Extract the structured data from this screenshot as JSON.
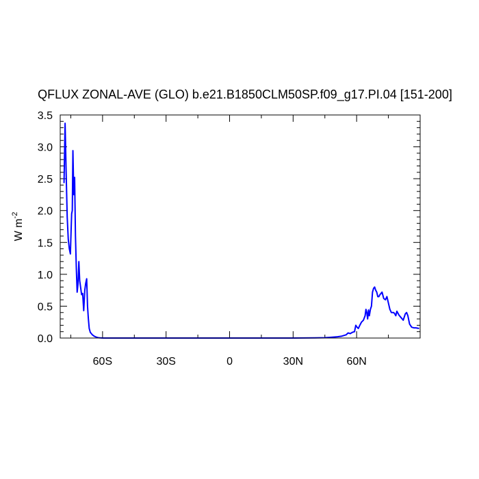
{
  "chart_data": {
    "type": "line",
    "title": "QFLUX ZONAL-AVE (GLO) b.e21.B1850CLM50SP.f09_g17.PI.04 [151-200]",
    "ylabel": "W m",
    "ylabel_superscript": "-2",
    "xlim": [
      -80,
      90
    ],
    "ylim": [
      0,
      3.5
    ],
    "grid": false,
    "legend": "none",
    "x_ticks": [
      {
        "value": -60,
        "label": "60S"
      },
      {
        "value": -30,
        "label": "30S"
      },
      {
        "value": 0,
        "label": "0"
      },
      {
        "value": 30,
        "label": "30N"
      },
      {
        "value": 60,
        "label": "60N"
      }
    ],
    "y_ticks": [
      {
        "value": 0,
        "label": "0.0"
      },
      {
        "value": 0.5,
        "label": "0.5"
      },
      {
        "value": 1.0,
        "label": "1.0"
      },
      {
        "value": 1.5,
        "label": "1.5"
      },
      {
        "value": 2.0,
        "label": "2.0"
      },
      {
        "value": 2.5,
        "label": "2.5"
      },
      {
        "value": 3.0,
        "label": "3.0"
      },
      {
        "value": 3.5,
        "label": "3.5"
      }
    ],
    "series": [
      {
        "color": "#0000ff",
        "x": [
          -78.2,
          -77.7,
          -77.2,
          -76.7,
          -76.2,
          -75.7,
          -75.2,
          -74.8,
          -74.6,
          -74.3,
          -74.0,
          -73.6,
          -73.2,
          -72.8,
          -72.4,
          -72.0,
          -71.6,
          -71.2,
          -70.8,
          -70.3,
          -69.9,
          -69.4,
          -68.9,
          -68.4,
          -68.0,
          -67.5,
          -67.1,
          -66.7,
          -66.3,
          -65.8,
          -65.3,
          -64.8,
          -64.0,
          -63.0,
          -62.0,
          -61.0,
          -60.0,
          -58.0,
          -55.0,
          -50.0,
          -40.0,
          -30.0,
          -20.0,
          -10.0,
          0.0,
          10.0,
          20.0,
          30.0,
          40.0,
          45.0,
          47.0,
          49.0,
          51.0,
          53.0,
          55.0,
          56.0,
          57.0,
          58.0,
          59.0,
          59.6,
          60.2,
          60.8,
          61.5,
          62.3,
          63.2,
          64.0,
          64.4,
          64.8,
          65.2,
          65.6,
          66.0,
          66.5,
          67.0,
          67.5,
          68.0,
          68.5,
          69.0,
          69.5,
          70.0,
          70.5,
          71.0,
          71.5,
          72.0,
          72.8,
          73.6,
          74.3,
          75.0,
          75.7,
          76.4,
          77.0,
          77.5,
          78.0,
          78.5,
          79.0,
          80.0,
          81.0,
          82.0,
          83.0,
          83.6,
          84.2,
          85.0,
          86.0,
          87.0,
          88.0,
          89.5
        ],
        "y": [
          2.43,
          3.37,
          2.6,
          1.9,
          1.55,
          1.4,
          1.32,
          1.75,
          1.95,
          2.0,
          2.94,
          2.25,
          2.52,
          1.6,
          1.1,
          0.72,
          0.85,
          1.2,
          0.9,
          0.78,
          0.68,
          0.7,
          0.43,
          0.75,
          0.85,
          0.93,
          0.5,
          0.3,
          0.15,
          0.09,
          0.07,
          0.05,
          0.03,
          0.015,
          0.005,
          0.002,
          0.0,
          0.0,
          0.0,
          0.0,
          0.0,
          0.0,
          0.0,
          0.0,
          0.0,
          0.0,
          0.0,
          0.0,
          0.002,
          0.005,
          0.01,
          0.015,
          0.02,
          0.03,
          0.05,
          0.08,
          0.07,
          0.09,
          0.1,
          0.2,
          0.17,
          0.15,
          0.2,
          0.25,
          0.28,
          0.35,
          0.45,
          0.4,
          0.3,
          0.44,
          0.35,
          0.45,
          0.5,
          0.72,
          0.78,
          0.8,
          0.75,
          0.72,
          0.65,
          0.65,
          0.68,
          0.7,
          0.72,
          0.62,
          0.6,
          0.65,
          0.55,
          0.45,
          0.4,
          0.4,
          0.4,
          0.38,
          0.35,
          0.42,
          0.36,
          0.32,
          0.28,
          0.38,
          0.4,
          0.35,
          0.22,
          0.17,
          0.16,
          0.16,
          0.15
        ]
      }
    ]
  }
}
